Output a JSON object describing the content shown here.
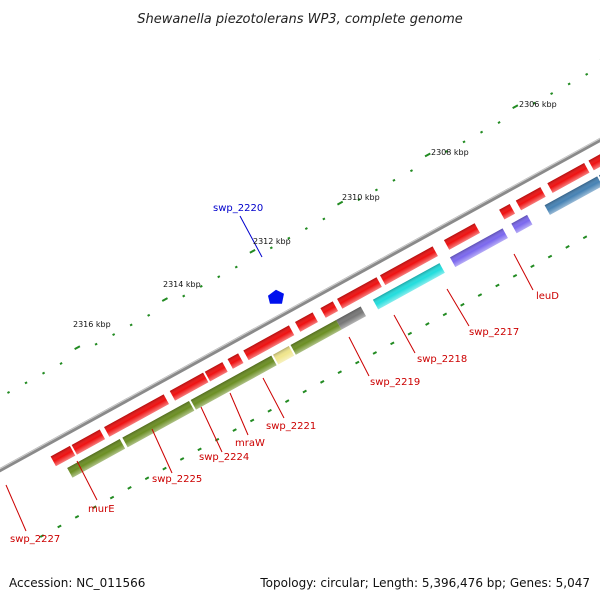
{
  "title": "Shewanella piezotolerans WP3, complete genome",
  "footer": {
    "accession": "Accession: NC_011566",
    "summary": "Topology: circular; Length: 5,396,476 bp; Genes: 5,047"
  },
  "ticks": [
    "2306 kbp",
    "2308 kbp",
    "2310 kbp",
    "2312 kbp",
    "2314 kbp",
    "2316 kbp"
  ],
  "genes": [
    {
      "name": "swp_2220",
      "color": "#0000cc"
    },
    {
      "name": "leuD",
      "color": "#cc0000"
    },
    {
      "name": "swp_2217",
      "color": "#cc0000"
    },
    {
      "name": "swp_2218",
      "color": "#cc0000"
    },
    {
      "name": "swp_2219",
      "color": "#cc0000"
    },
    {
      "name": "swp_2221",
      "color": "#cc0000"
    },
    {
      "name": "mraW",
      "color": "#cc0000"
    },
    {
      "name": "swp_2224",
      "color": "#cc0000"
    },
    {
      "name": "swp_2225",
      "color": "#cc0000"
    },
    {
      "name": "murE",
      "color": "#cc0000"
    },
    {
      "name": "swp_2227",
      "color": "#cc0000"
    }
  ],
  "colors": {
    "backbone": "#8a8a8a",
    "cds": "#ee1111",
    "cog_olive": "#6b8e23",
    "cog_cyan": "#22dddd",
    "cog_purple": "#7b68ee",
    "cog_steel": "#4682b4",
    "cog_gray": "#777777",
    "cog_khaki": "#f0e68c",
    "ticks": "#228b22"
  }
}
